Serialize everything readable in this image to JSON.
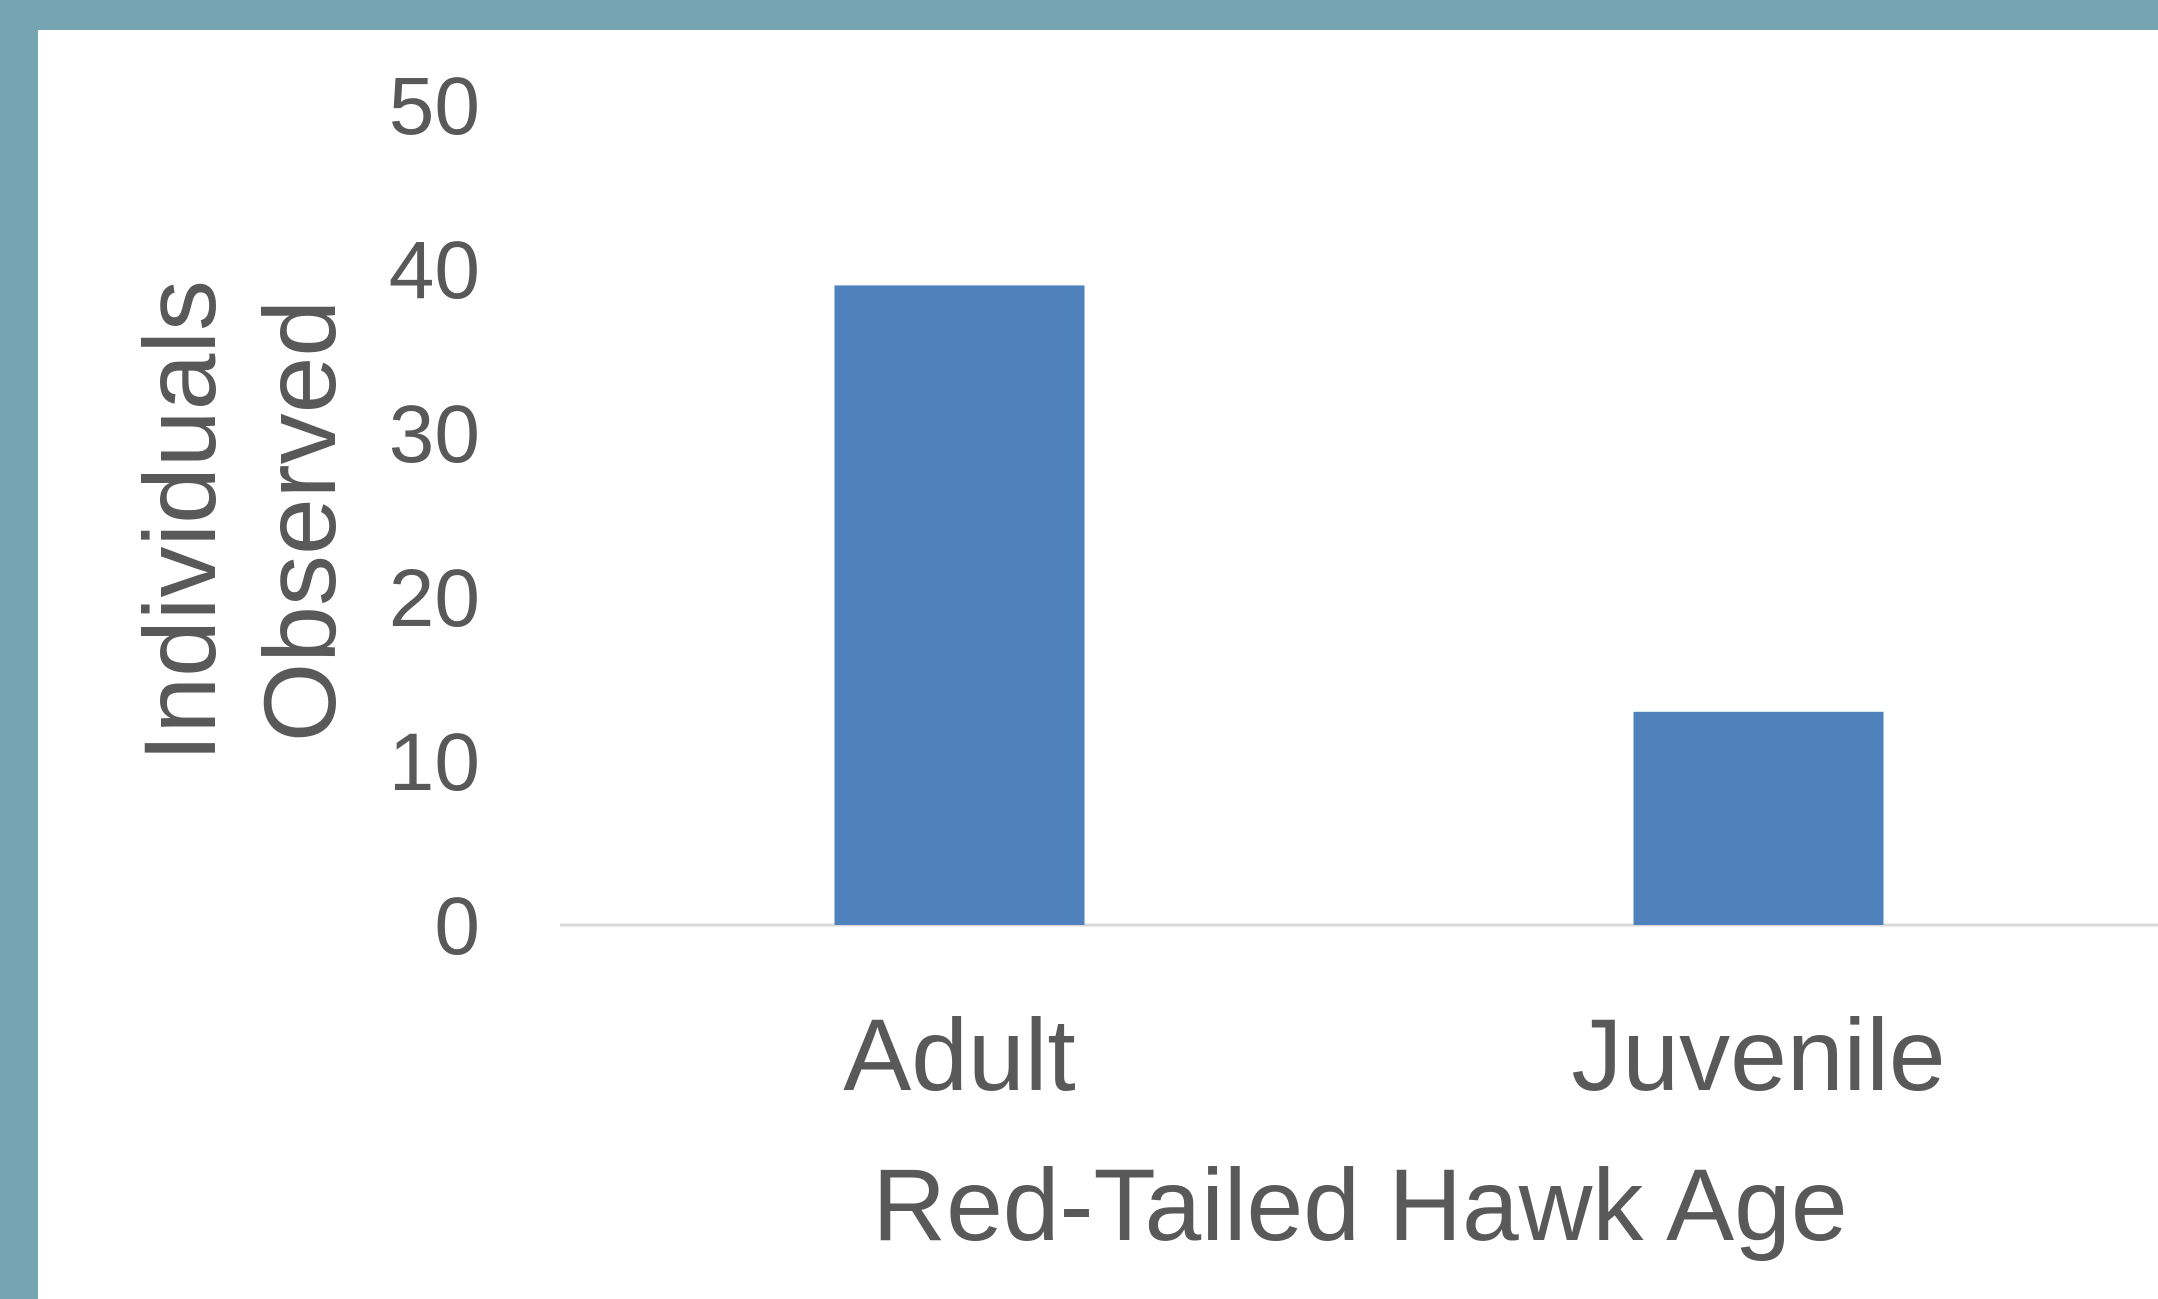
{
  "chart_data": {
    "type": "bar",
    "categories": [
      "Adult",
      "Juvenile"
    ],
    "values": [
      39,
      13
    ],
    "xlabel": "Red-Tailed Hawk Age",
    "ylabel_lines": [
      "Individuals",
      "Observed"
    ],
    "ylim": [
      0,
      50
    ],
    "yticks": [
      "0",
      "10",
      "20",
      "30",
      "40",
      "50"
    ],
    "grid": false,
    "legend": "none",
    "colors": {
      "bar": "#4f81bd",
      "frame": "#76a5b2",
      "plot_background": "#ffffff",
      "axis_line": "#d9d9d9",
      "text": "#595959"
    }
  }
}
